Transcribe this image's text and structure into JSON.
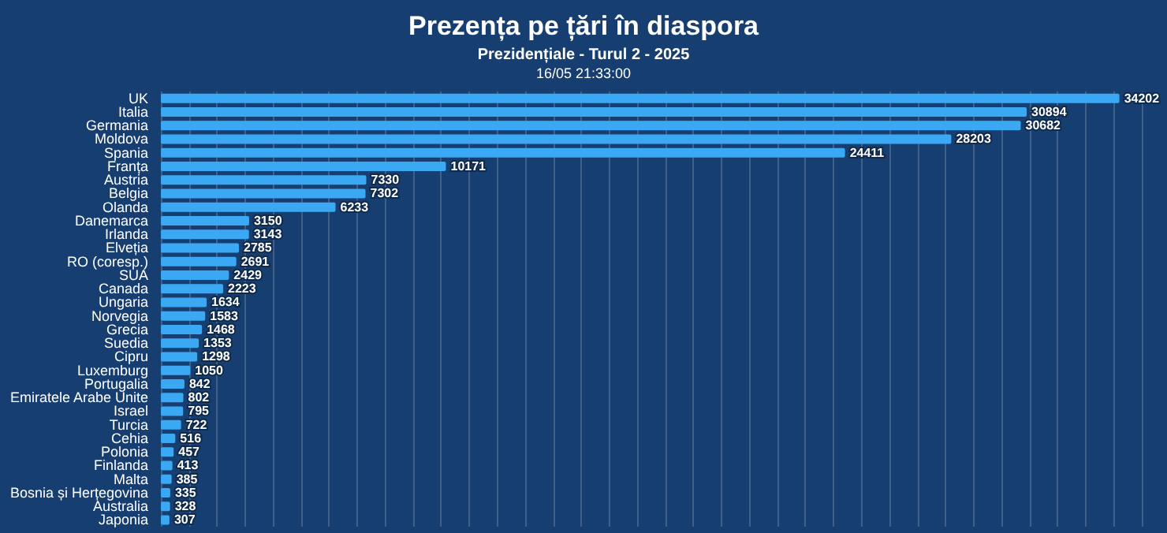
{
  "chart_data": {
    "type": "bar",
    "orientation": "horizontal",
    "title": "Prezența pe țări în diaspora",
    "subtitle": "Prezidențiale - Turul 2 - 2025",
    "annotations": [
      "16/05 21:33:00"
    ],
    "categories": [
      "UK",
      "Italia",
      "Germania",
      "Moldova",
      "Spania",
      "Franța",
      "Austria",
      "Belgia",
      "Olanda",
      "Danemarca",
      "Irlanda",
      "Elveția",
      "RO (coresp.)",
      "SUA",
      "Canada",
      "Ungaria",
      "Norvegia",
      "Grecia",
      "Suedia",
      "Cipru",
      "Luxemburg",
      "Portugalia",
      "Emiratele Arabe Unite",
      "Israel",
      "Turcia",
      "Cehia",
      "Polonia",
      "Finlanda",
      "Malta",
      "Bosnia și Herțegovina",
      "Australia",
      "Japonia"
    ],
    "values": [
      34202,
      30894,
      30682,
      28203,
      24411,
      10171,
      7330,
      7302,
      6233,
      3150,
      3143,
      2785,
      2691,
      2429,
      2223,
      1634,
      1583,
      1468,
      1353,
      1298,
      1050,
      842,
      802,
      795,
      722,
      516,
      457,
      413,
      385,
      335,
      328,
      307
    ],
    "color": "#3aa8f2",
    "data_labels": true,
    "grid": "x",
    "tick_labels": "y",
    "xlim": [
      0,
      35000
    ],
    "xticks": [
      0,
      1000,
      2000,
      3000,
      4000,
      5000,
      6000,
      7000,
      8000,
      9000,
      10000,
      11000,
      12000,
      13000,
      14000,
      15000,
      16000,
      17000,
      18000,
      19000,
      20000,
      21000,
      22000,
      23000,
      24000,
      25000,
      26000,
      27000,
      28000,
      29000,
      30000,
      31000,
      32000,
      33000,
      34000,
      35000
    ]
  }
}
